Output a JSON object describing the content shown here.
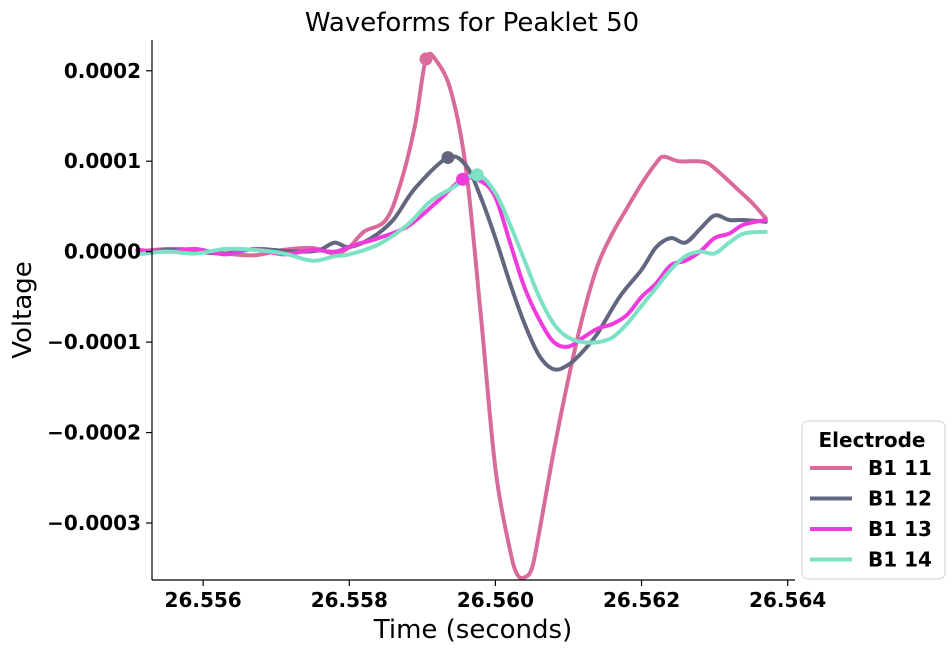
{
  "chart_data": {
    "type": "line",
    "title": "Waveforms for Peaklet 50",
    "xlabel": "Time (seconds)",
    "ylabel": "Voltage",
    "xlim": [
      26.5553,
      26.5641
    ],
    "ylim": [
      -0.000363,
      0.000234
    ],
    "xticks": [
      26.556,
      26.558,
      26.56,
      26.562,
      26.564
    ],
    "xtick_labels": [
      "26.556",
      "26.558",
      "26.560",
      "26.562",
      "26.564"
    ],
    "yticks": [
      0.0002,
      0.0001,
      0.0,
      -0.0001,
      -0.0002,
      -0.0003
    ],
    "ytick_labels": [
      "0.0002",
      "0.0001",
      "0.0000",
      "−0.0001",
      "−0.0002",
      "−0.0003"
    ],
    "grid": false,
    "legend": {
      "title": "Electrode",
      "placement": "lower-right-outside"
    },
    "series": [
      {
        "name": "B1 11",
        "color": "#d96b9a",
        "x": [
          26.5551,
          26.5555,
          26.5559,
          26.5563,
          26.5567,
          26.5571,
          26.5575,
          26.5578,
          26.558,
          26.5582,
          26.5585,
          26.5587,
          26.5589,
          26.55905,
          26.5592,
          26.5594,
          26.5596,
          26.5598,
          26.56,
          26.5602,
          26.5603,
          26.5604,
          26.5605,
          26.5606,
          26.5608,
          26.561,
          26.5612,
          26.5614,
          26.5616,
          26.5618,
          26.562,
          26.5622,
          26.5623,
          26.5625,
          26.5627,
          26.5629,
          26.5631,
          26.5633,
          26.5635,
          26.5637
        ],
        "values": [
          0.0,
          3e-06,
          2e-06,
          -2e-06,
          -4e-06,
          2e-06,
          4e-06,
          -2e-06,
          5e-06,
          2.2e-05,
          3.5e-05,
          7.5e-05,
          0.00014,
          0.000213,
          0.00021,
          0.000175,
          9e-05,
          -7e-05,
          -0.00024,
          -0.00033,
          -0.000357,
          -0.00036,
          -0.00035,
          -0.00031,
          -0.00022,
          -0.00014,
          -7e-05,
          -1.5e-05,
          2e-05,
          4.8e-05,
          7.5e-05,
          9.8e-05,
          0.000105,
          0.0001,
          0.0001,
          9.8e-05,
          8.5e-05,
          7e-05,
          5.5e-05,
          3.7e-05
        ]
      },
      {
        "name": "B1 12",
        "color": "#62677f",
        "x": [
          26.5551,
          26.5555,
          26.5559,
          26.5563,
          26.5567,
          26.5571,
          26.5574,
          26.5576,
          26.5578,
          26.558,
          26.5583,
          26.5586,
          26.5589,
          26.55935,
          26.5596,
          26.5598,
          26.56,
          26.5602,
          26.5604,
          26.5606,
          26.5608,
          26.561,
          26.5612,
          26.5614,
          26.5617,
          26.562,
          26.5622,
          26.5624,
          26.5626,
          26.5628,
          26.563,
          26.5632,
          26.5634,
          26.5637
        ],
        "values": [
          -3e-06,
          2e-06,
          0.0,
          -2e-06,
          3e-06,
          1e-06,
          0.0,
          2e-06,
          1e-05,
          5e-06,
          1.5e-05,
          3.5e-05,
          7e-05,
          0.000104,
          9.5e-05,
          6e-05,
          1.5e-05,
          -3.5e-05,
          -8e-05,
          -0.000115,
          -0.00013,
          -0.000125,
          -0.00011,
          -9e-05,
          -5e-05,
          -2e-05,
          5e-06,
          1.5e-05,
          1e-05,
          2.5e-05,
          4e-05,
          3.5e-05,
          3.5e-05,
          3.3e-05
        ]
      },
      {
        "name": "B1 13",
        "color": "#ef3bdc",
        "x": [
          26.5551,
          26.5555,
          26.5559,
          26.5563,
          26.5567,
          26.5571,
          26.5575,
          26.5578,
          26.5581,
          26.5584,
          26.5588,
          26.5592,
          26.55955,
          26.5598,
          26.56,
          26.5602,
          26.5604,
          26.5606,
          26.5608,
          26.561,
          26.5612,
          26.5614,
          26.5616,
          26.5618,
          26.562,
          26.5622,
          26.5624,
          26.5626,
          26.5628,
          26.563,
          26.5632,
          26.5634,
          26.5637
        ],
        "values": [
          2e-06,
          0.0,
          3e-06,
          -3e-06,
          3e-06,
          -3e-06,
          2e-06,
          0.0,
          8e-06,
          1.5e-05,
          2.8e-05,
          5.5e-05,
          8e-05,
          7.8e-05,
          6e-05,
          1e-05,
          -4e-05,
          -7.5e-05,
          -0.0001,
          -0.000105,
          -9.5e-05,
          -8.5e-05,
          -8e-05,
          -7e-05,
          -5e-05,
          -3.5e-05,
          -1.5e-05,
          -1e-05,
          0.0,
          1.5e-05,
          2e-05,
          3e-05,
          3.5e-05
        ]
      },
      {
        "name": "B1 14",
        "color": "#7de1c6",
        "x": [
          26.5551,
          26.5555,
          26.5559,
          26.5563,
          26.5567,
          26.5571,
          26.5575,
          26.5578,
          26.558,
          26.5584,
          26.5588,
          26.5591,
          26.5594,
          26.55975,
          26.56,
          26.5602,
          26.5604,
          26.5606,
          26.5608,
          26.561,
          26.5612,
          26.5614,
          26.5616,
          26.5618,
          26.562,
          26.5622,
          26.5624,
          26.5626,
          26.5628,
          26.563,
          26.5632,
          26.5634,
          26.5637
        ],
        "values": [
          -3e-06,
          0.0,
          -2e-06,
          3e-06,
          2e-06,
          -2e-06,
          -1e-05,
          -5e-06,
          -3e-06,
          8e-06,
          3e-05,
          5.5e-05,
          7e-05,
          8.5e-05,
          6.5e-05,
          3e-05,
          -1e-05,
          -5e-05,
          -8e-05,
          -9.5e-05,
          -0.0001,
          -0.0001,
          -9.5e-05,
          -8e-05,
          -6e-05,
          -4e-05,
          -2e-05,
          -5e-06,
          0.0,
          -2e-06,
          1e-05,
          2e-05,
          2.2e-05
        ]
      }
    ],
    "markers": [
      {
        "series": "B1 11",
        "x": 26.55905,
        "y": 0.000213
      },
      {
        "series": "B1 12",
        "x": 26.55935,
        "y": 0.000104
      },
      {
        "series": "B1 13",
        "x": 26.55955,
        "y": 8e-05
      },
      {
        "series": "B1 14",
        "x": 26.55975,
        "y": 8.5e-05
      }
    ]
  }
}
